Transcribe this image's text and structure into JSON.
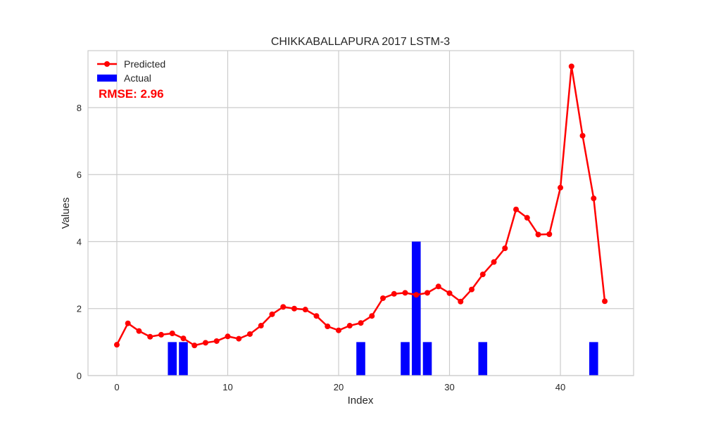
{
  "chart_data": {
    "type": "bar+line",
    "title": "CHIKKABALLAPURA 2017 LSTM-3",
    "xlabel": "Index",
    "ylabel": "Values",
    "xlim": [
      -2.6,
      46.6
    ],
    "ylim": [
      0,
      9.7
    ],
    "xticks": [
      0,
      10,
      20,
      30,
      40
    ],
    "yticks": [
      0,
      2,
      4,
      6,
      8
    ],
    "grid": true,
    "legend_position": "top-left",
    "annotation": "RMSE: 2.96",
    "series": [
      {
        "name": "Predicted",
        "kind": "line",
        "color": "#ff0000",
        "x": [
          0,
          1,
          2,
          3,
          4,
          5,
          6,
          7,
          8,
          9,
          10,
          11,
          12,
          13,
          14,
          15,
          16,
          17,
          18,
          19,
          20,
          21,
          22,
          23,
          24,
          25,
          26,
          27,
          28,
          29,
          30,
          31,
          32,
          33,
          34,
          35,
          36,
          37,
          38,
          39,
          40,
          41,
          42,
          43,
          44
        ],
        "values": [
          0.92,
          1.56,
          1.33,
          1.16,
          1.22,
          1.26,
          1.11,
          0.9,
          0.98,
          1.03,
          1.17,
          1.1,
          1.24,
          1.49,
          1.83,
          2.05,
          2.0,
          1.97,
          1.78,
          1.47,
          1.35,
          1.49,
          1.57,
          1.78,
          2.31,
          2.44,
          2.47,
          2.41,
          2.47,
          2.66,
          2.46,
          2.21,
          2.57,
          3.02,
          3.39,
          3.8,
          4.96,
          4.71,
          4.21,
          4.22,
          5.61,
          9.23,
          7.16,
          5.29,
          2.22
        ]
      },
      {
        "name": "Actual",
        "kind": "bar",
        "color": "#0000ff",
        "x": [
          0,
          1,
          2,
          3,
          4,
          5,
          6,
          7,
          8,
          9,
          10,
          11,
          12,
          13,
          14,
          15,
          16,
          17,
          18,
          19,
          20,
          21,
          22,
          23,
          24,
          25,
          26,
          27,
          28,
          29,
          30,
          31,
          32,
          33,
          34,
          35,
          36,
          37,
          38,
          39,
          40,
          41,
          42,
          43,
          44
        ],
        "values": [
          0,
          0,
          0,
          0,
          0,
          1,
          1,
          0,
          0,
          0,
          0,
          0,
          0,
          0,
          0,
          0,
          0,
          0,
          0,
          0,
          0,
          0,
          1,
          0,
          0,
          0,
          1,
          4,
          1,
          0,
          0,
          0,
          0,
          1,
          0,
          0,
          0,
          0,
          0,
          0,
          0,
          0,
          0,
          1,
          0
        ]
      }
    ]
  }
}
